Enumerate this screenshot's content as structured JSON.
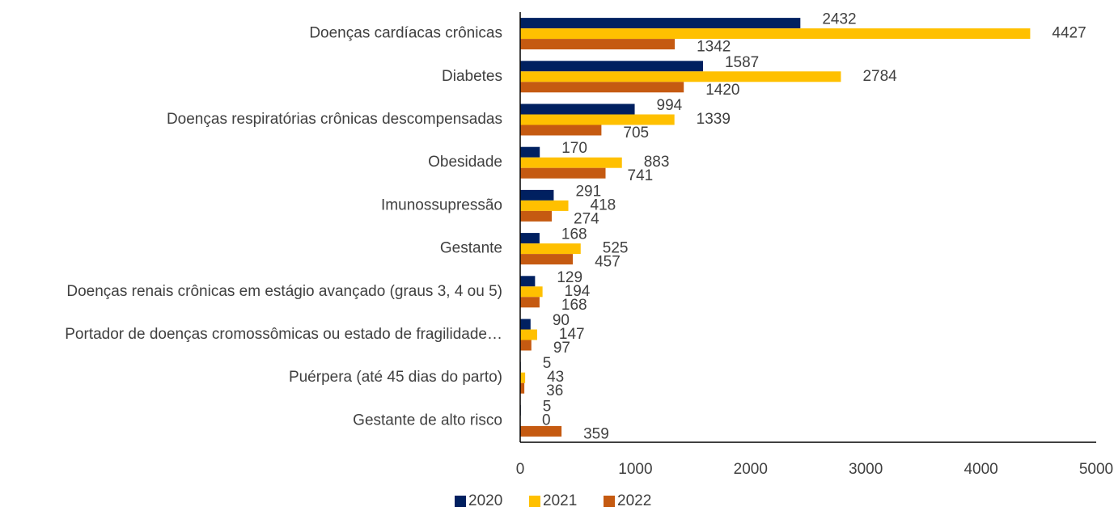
{
  "chart_data": {
    "type": "hbar",
    "categories": [
      "Doenças cardíacas crônicas",
      "Diabetes",
      "Doenças respiratórias crônicas descompensadas",
      "Obesidade",
      "Imunossupressão",
      "Gestante",
      "Doenças renais crônicas em estágio avançado (graus 3, 4 ou 5)",
      "Portador de doenças cromossômicas ou estado de fragilidade…",
      "Puérpera (até 45 dias do parto)",
      "Gestante de alto risco"
    ],
    "series": [
      {
        "name": "2020",
        "color": "#002060",
        "values": [
          2432,
          1587,
          994,
          170,
          291,
          168,
          129,
          90,
          5,
          5
        ]
      },
      {
        "name": "2021",
        "color": "#ffc000",
        "values": [
          4427,
          2784,
          1339,
          883,
          418,
          525,
          194,
          147,
          43,
          0
        ]
      },
      {
        "name": "2022",
        "color": "#c55a11",
        "values": [
          1342,
          1420,
          705,
          741,
          274,
          457,
          168,
          97,
          36,
          359
        ]
      }
    ],
    "xlim": [
      0,
      5000
    ],
    "xticks": [
      0,
      1000,
      2000,
      3000,
      4000,
      5000
    ],
    "legend": "bottom",
    "grid": false
  }
}
